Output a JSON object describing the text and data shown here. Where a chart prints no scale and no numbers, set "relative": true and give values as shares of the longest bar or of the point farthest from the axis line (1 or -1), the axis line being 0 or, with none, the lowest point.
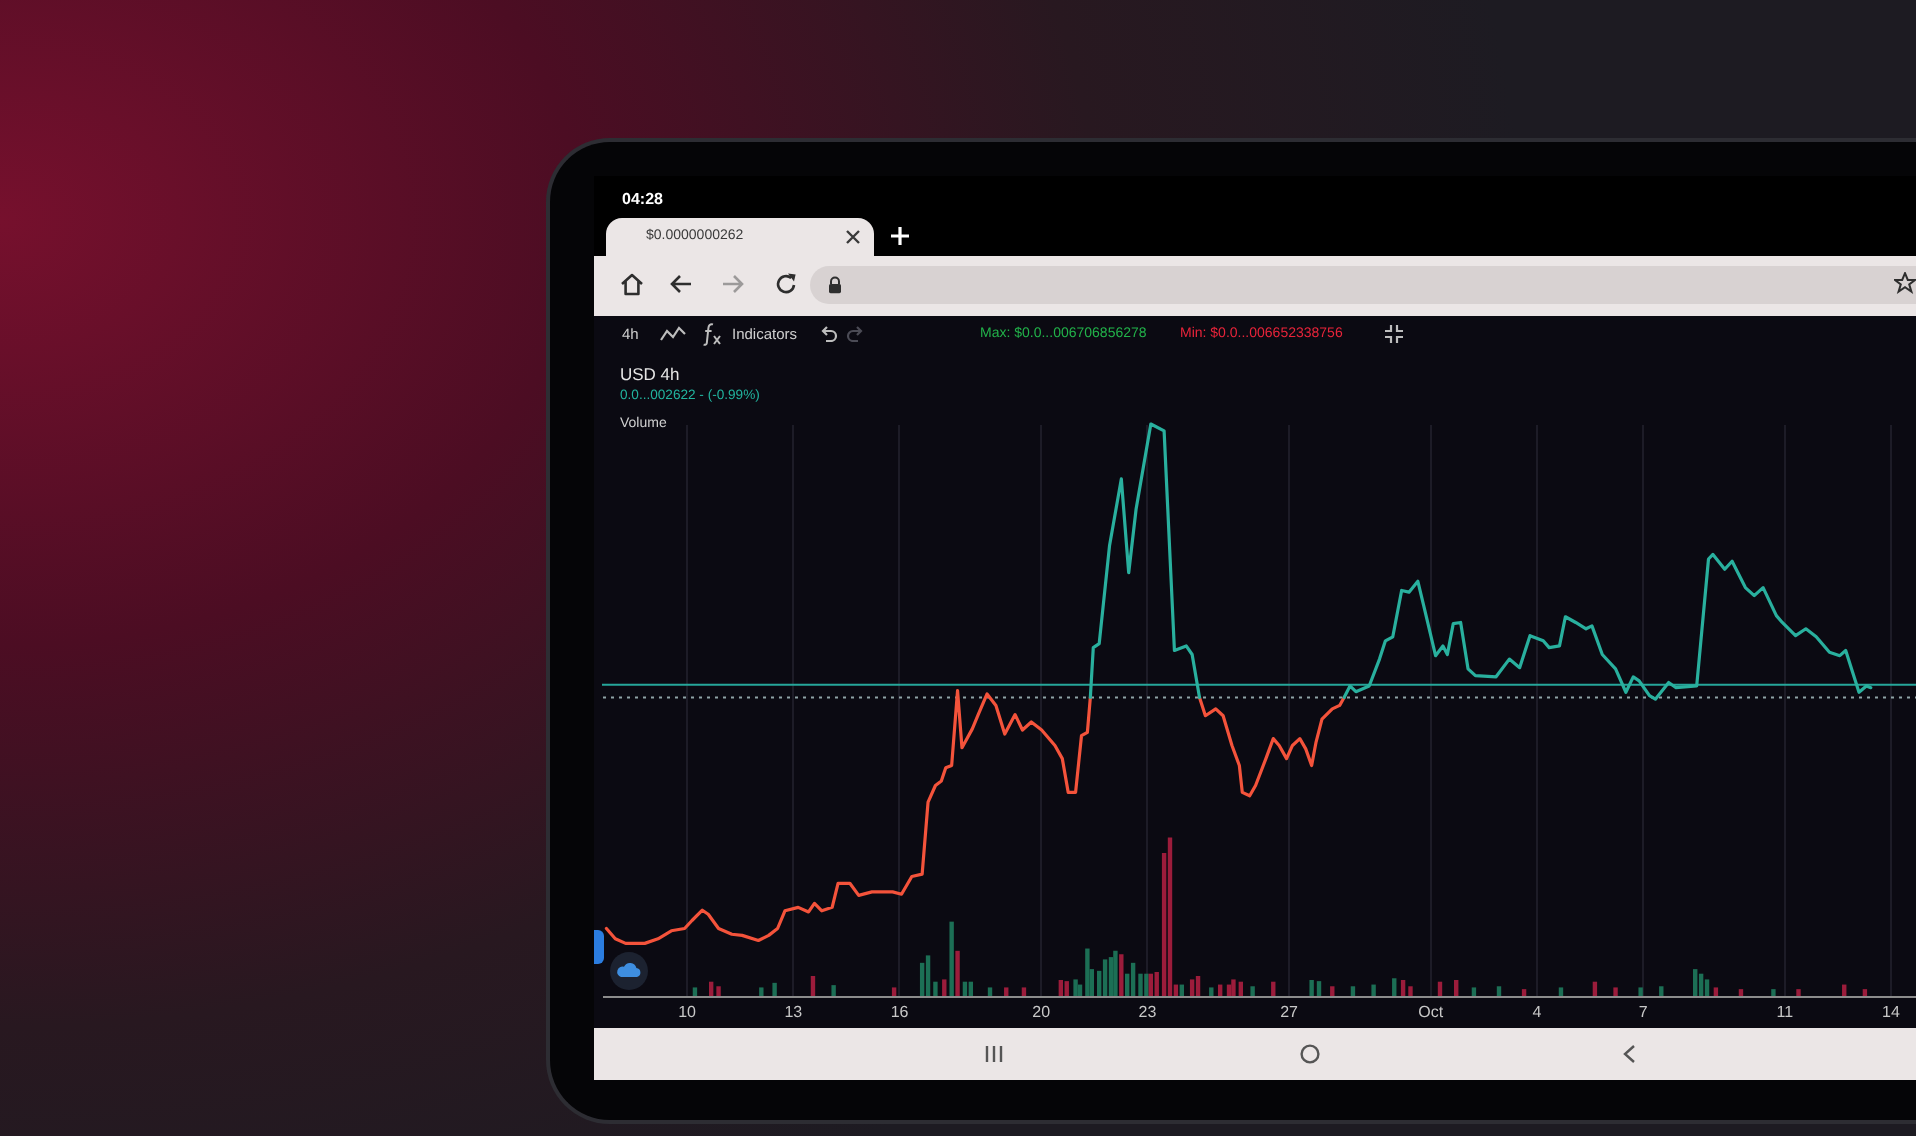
{
  "chart_data": {
    "type": "line",
    "title": "USD 4h",
    "subtitle": "0.0...002622 - (-0.99%)",
    "annotations": [
      "04:28",
      "$0.0000000262",
      "4h",
      "Indicators",
      "Max: $0.0...006706856278",
      "Min: $0.0...006652338756",
      "Volume"
    ],
    "relative": true,
    "grid": "x",
    "xlim": [
      "--09-07T15:00",
      "--10-14T19:00"
    ],
    "xticks": [
      {
        "value": "--09-10",
        "label": "10"
      },
      {
        "value": "--09-13",
        "label": "13"
      },
      {
        "value": "--09-16",
        "label": "16"
      },
      {
        "value": "--09-20",
        "label": "20"
      },
      {
        "value": "--09-23",
        "label": "23"
      },
      {
        "value": "--09-27",
        "label": "27"
      },
      {
        "value": "--10-01",
        "label": "Oct"
      },
      {
        "value": "--10-04",
        "label": "4"
      },
      {
        "value": "--10-07",
        "label": "7"
      },
      {
        "value": "--10-11",
        "label": "11"
      },
      {
        "value": "--10-14",
        "label": "14"
      }
    ],
    "ref_lines": [
      {
        "axis": "y",
        "value": 0.544,
        "color": "#26a69a",
        "line_style": "solid"
      },
      {
        "axis": "y",
        "value": 0.522,
        "color": "#8fa3a6",
        "line_style": "dotted"
      }
    ],
    "series": [
      {
        "type": "bar",
        "x": [
          "--09-10T06:00",
          "--09-10T17:00",
          "--09-10T22:00",
          "--09-12T03:00",
          "--09-12T12:00",
          "--09-13T14:00",
          "--09-14T04:00",
          "--09-15T21:00",
          "--09-16T16:00",
          "--09-16T20:00",
          "--09-17T01:00",
          "--09-17T07:00",
          "--09-17T12:00",
          "--09-17T16:00",
          "--09-17T21:00",
          "--09-18T01:00",
          "--09-18T14:00",
          "--09-19T01:00",
          "--09-19T13:00",
          "--09-20T14:00",
          "--09-20T18:00",
          "--09-21T00:00",
          "--09-21T03:00",
          "--09-21T08:00",
          "--09-21T11:00",
          "--09-21T16:00",
          "--09-21T20:00",
          "--09-22T00:00",
          "--09-22T03:00",
          "--09-22T07:00",
          "--09-22T11:00",
          "--09-22T15:00",
          "--09-22T20:00",
          "--09-23T00:00",
          "--09-23T03:00",
          "--09-23T07:00",
          "--09-23T12:00",
          "--09-23T16:00",
          "--09-23T20:00",
          "--09-24T00:00",
          "--09-24T07:00",
          "--09-24T11:00",
          "--09-24T20:00",
          "--09-25T02:00",
          "--09-25T08:00",
          "--09-25T11:00",
          "--09-25T16:00",
          "--09-26T00:00",
          "--09-26T14:00",
          "--09-27T16:00",
          "--09-27T21:00",
          "--09-28T06:00",
          "--09-28T20:00",
          "--09-29T10:00",
          "--09-30T00:00",
          "--09-30T06:00",
          "--09-30T11:00",
          "--10-01T07:00",
          "--10-01T18:00",
          "--10-02T06:00",
          "--10-02T23:00",
          "--10-03T16:00",
          "--10-04T17:00",
          "--10-05T16:00",
          "--10-06T06:00",
          "--10-06T23:00",
          "--10-07T13:00",
          "--10-08T12:00",
          "--10-08T16:00",
          "--10-08T20:00",
          "--10-09T02:00",
          "--10-09T19:00",
          "--10-10T17:00",
          "--10-11T10:00",
          "--10-12T17:00",
          "--10-13T07:00"
        ],
        "values": [
          0.015,
          0.025,
          0.017,
          0.015,
          0.023,
          0.035,
          0.019,
          0.015,
          0.058,
          0.071,
          0.025,
          0.029,
          0.13,
          0.079,
          0.025,
          0.025,
          0.015,
          0.015,
          0.015,
          0.028,
          0.026,
          0.029,
          0.02,
          0.083,
          0.047,
          0.044,
          0.064,
          0.068,
          0.079,
          0.073,
          0.039,
          0.058,
          0.039,
          0.039,
          0.039,
          0.042,
          0.25,
          0.277,
          0.02,
          0.02,
          0.029,
          0.035,
          0.015,
          0.02,
          0.02,
          0.029,
          0.025,
          0.017,
          0.025,
          0.028,
          0.026,
          0.017,
          0.017,
          0.02,
          0.031,
          0.028,
          0.017,
          0.025,
          0.028,
          0.015,
          0.017,
          0.012,
          0.015,
          0.025,
          0.015,
          0.015,
          0.017,
          0.047,
          0.039,
          0.029,
          0.015,
          0.012,
          0.012,
          0.012,
          0.02,
          0.012
        ],
        "colors": [
          "#1c6f55",
          "#9c1c3b",
          "#9c1c3b",
          "#1c6f55",
          "#1c6f55",
          "#9c1c3b",
          "#1c6f55",
          "#9c1c3b",
          "#1c6f55",
          "#1c6f55",
          "#1c6f55",
          "#9c1c3b",
          "#1c6f55",
          "#9c1c3b",
          "#1c6f55",
          "#1c6f55",
          "#1c6f55",
          "#9c1c3b",
          "#9c1c3b",
          "#9c1c3b",
          "#9c1c3b",
          "#1c6f55",
          "#1c6f55",
          "#1c6f55",
          "#1c6f55",
          "#1c6f55",
          "#1c6f55",
          "#1c6f55",
          "#1c6f55",
          "#9c1c3b",
          "#1c6f55",
          "#1c6f55",
          "#1c6f55",
          "#1c6f55",
          "#9c1c3b",
          "#9c1c3b",
          "#9c1c3b",
          "#9c1c3b",
          "#9c1c3b",
          "#1c6f55",
          "#9c1c3b",
          "#9c1c3b",
          "#1c6f55",
          "#9c1c3b",
          "#9c1c3b",
          "#9c1c3b",
          "#9c1c3b",
          "#1c6f55",
          "#9c1c3b",
          "#1c6f55",
          "#1c6f55",
          "#9c1c3b",
          "#1c6f55",
          "#1c6f55",
          "#1c6f55",
          "#9c1c3b",
          "#9c1c3b",
          "#9c1c3b",
          "#9c1c3b",
          "#1c6f55",
          "#1c6f55",
          "#9c1c3b",
          "#1c6f55",
          "#9c1c3b",
          "#9c1c3b",
          "#1c6f55",
          "#1c6f55",
          "#1c6f55",
          "#1c6f55",
          "#1c6f55",
          "#9c1c3b",
          "#9c1c3b",
          "#1c6f55",
          "#9c1c3b",
          "#9c1c3b",
          "#9c1c3b"
        ]
      },
      {
        "color": "#f4533b",
        "x": [
          "--09-07T18:00",
          "--09-08T00:00",
          "--09-08T07:00",
          "--09-08T20:00",
          "--09-09T05:00",
          "--09-09T14:00",
          "--09-09T23:00",
          "--09-10T04:00",
          "--09-10T11:00",
          "--09-10T15:00",
          "--09-10T22:00",
          "--09-11T07:00",
          "--09-11T14:00",
          "--09-12T01:00",
          "--09-12T08:00",
          "--09-12T14:00",
          "--09-12T19:00",
          "--09-13T04:00",
          "--09-13T11:00",
          "--09-13T15:00",
          "--09-13T20:00",
          "--09-14T03:00",
          "--09-14T07:00",
          "--09-14T15:00",
          "--09-14T21:00",
          "--09-15T06:00",
          "--09-15T20:00",
          "--09-16T02:00",
          "--09-16T09:00",
          "--09-16T16:00",
          "--09-16T20:00",
          "--09-17T01:00",
          "--09-17T05:00",
          "--09-17T08:00",
          "--09-17T12:00",
          "--09-17T16:00",
          "--09-17T19:00",
          "--09-18T02:00",
          "--09-18T06:00",
          "--09-18T12:00",
          "--09-18T18:00",
          "--09-19T00:00",
          "--09-19T07:00",
          "--09-19T12:00",
          "--09-19T18:00",
          "--09-20T01:00",
          "--09-20T10:00",
          "--09-20T15:00",
          "--09-20T19:00",
          "--09-21T00:00",
          "--09-21T04:00",
          "--09-21T08:00",
          "--09-21T10:00",
          "--09-23T00:00",
          "--09-24T12:00",
          "--09-24T16:00",
          "--09-24T23:00",
          "--09-25T04:00",
          "--09-25T10:00",
          "--09-25T15:00",
          "--09-25T17:00",
          "--09-25T22:00",
          "--09-26T02:00",
          "--09-26T09:00",
          "--09-26T14:00",
          "--09-26T18:00",
          "--09-26T23:00",
          "--09-27T03:00",
          "--09-27T08:00",
          "--09-27T12:00",
          "--09-27T16:00",
          "--09-27T19:00",
          "--09-27T23:00",
          "--09-28T06:00",
          "--09-28T11:00",
          "--09-28T14:00"
        ],
        "values": [
          0.118,
          0.1,
          0.092,
          0.092,
          0.1,
          0.114,
          0.118,
          0.132,
          0.15,
          0.143,
          0.118,
          0.108,
          0.106,
          0.097,
          0.106,
          0.118,
          0.149,
          0.155,
          0.147,
          0.162,
          0.149,
          0.155,
          0.197,
          0.197,
          0.176,
          0.182,
          0.182,
          0.178,
          0.209,
          0.213,
          0.339,
          0.368,
          0.376,
          0.399,
          0.403,
          0.534,
          0.434,
          0.467,
          0.492,
          0.528,
          0.508,
          0.458,
          0.492,
          0.465,
          0.479,
          0.465,
          0.438,
          0.415,
          0.356,
          0.356,
          0.455,
          0.461,
          0.522,
          null,
          0.522,
          0.49,
          0.502,
          0.49,
          0.438,
          0.403,
          0.356,
          0.35,
          0.368,
          0.415,
          0.45,
          0.438,
          0.415,
          0.438,
          0.45,
          0.432,
          0.403,
          0.444,
          0.484,
          0.502,
          0.508,
          0.522
        ]
      },
      {
        "color": "#29b09e",
        "x": [
          "--09-21T10:00",
          "--09-21T12:00",
          "--09-21T16:00",
          "--09-21T23:00",
          "--09-22T07:00",
          "--09-22T12:00",
          "--09-22T17:00",
          "--09-23T03:00",
          "--09-23T12:00",
          "--09-23T19:00",
          "--09-24T03:00",
          "--09-24T07:00",
          "--09-24T12:00",
          "--09-26T12:00",
          "--09-28T14:00",
          "--09-28T18:00",
          "--09-28T22:00",
          "--09-29T07:00",
          "--09-29T14:00",
          "--09-29T18:00",
          "--09-29T23:00",
          "--09-30T05:00",
          "--09-30T10:00",
          "--09-30T16:00",
          "--09-30T20:00",
          "--10-01T04:00",
          "--10-01T09:00",
          "--10-01T12:00",
          "--10-01T16:00",
          "--10-01T21:00",
          "--10-02T02:00",
          "--10-02T07:00",
          "--10-02T21:00",
          "--10-03T06:00",
          "--10-03T13:00",
          "--10-03T20:00",
          "--10-04T05:00",
          "--10-04T09:00",
          "--10-04T16:00",
          "--10-04T20:00",
          "--10-05T03:00",
          "--10-05T10:00",
          "--10-05T14:00",
          "--10-05T21:00",
          "--10-06T06:00",
          "--10-06T13:00",
          "--10-06T18:00",
          "--10-06T22:00",
          "--10-07T05:00",
          "--10-07T09:00",
          "--10-07T18:00",
          "--10-07T23:00",
          "--10-08T13:00",
          "--10-08T21:00",
          "--10-09T00:00",
          "--10-09T08:00",
          "--10-09T13:00",
          "--10-09T22:00",
          "--10-10T04:00",
          "--10-10T10:00",
          "--10-10T19:00",
          "--10-10T23:00",
          "--10-11T08:00",
          "--10-11T15:00",
          "--10-11T22:00",
          "--10-12T07:00",
          "--10-12T14:00",
          "--10-12T18:00",
          "--10-13T03:00",
          "--10-13T08:00",
          "--10-13T11:00"
        ],
        "values": [
          0.522,
          0.609,
          0.616,
          0.787,
          0.904,
          0.74,
          0.851,
          1,
          0.988,
          0.604,
          0.612,
          0.597,
          0.522,
          null,
          0.522,
          0.542,
          0.532,
          0.542,
          0.589,
          0.621,
          0.628,
          0.709,
          0.706,
          0.725,
          0.682,
          0.595,
          0.612,
          0.597,
          0.651,
          0.653,
          0.572,
          0.56,
          0.558,
          0.589,
          0.574,
          0.63,
          0.621,
          0.609,
          0.612,
          0.663,
          0.653,
          0.642,
          0.647,
          0.597,
          0.572,
          0.531,
          0.558,
          0.551,
          0.525,
          0.519,
          0.548,
          0.539,
          0.542,
          0.764,
          0.772,
          0.746,
          0.76,
          0.714,
          0.7,
          0.714,
          0.665,
          0.653,
          0.63,
          0.642,
          0.628,
          0.601,
          0.595,
          0.604,
          0.531,
          0.542,
          0.539
        ]
      }
    ]
  }
}
